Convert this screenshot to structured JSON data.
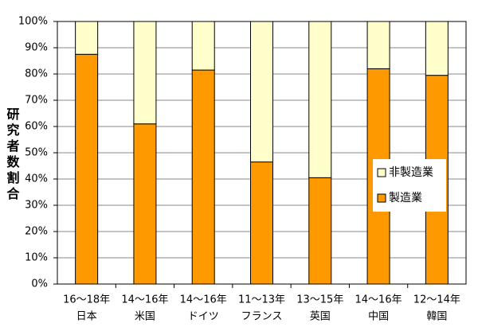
{
  "chart_data": {
    "type": "stacked_bar",
    "y_label": "研究者数割合",
    "categories": [
      [
        "16～18年",
        "日本"
      ],
      [
        "14～16年",
        "米国"
      ],
      [
        "14～16年",
        "ドイツ"
      ],
      [
        "11～13年",
        "フランス"
      ],
      [
        "13～15年",
        "英国"
      ],
      [
        "14～16年",
        "中国"
      ],
      [
        "12～14年",
        "韓国"
      ]
    ],
    "series": [
      {
        "name": "製造業",
        "color": "#ff9900",
        "values": [
          87.5,
          61,
          81.5,
          46.5,
          40.5,
          82,
          79.5
        ]
      },
      {
        "name": "非製造業",
        "color": "#ffffcc",
        "values": [
          12.5,
          39,
          18.5,
          53.5,
          59.5,
          18,
          20.5
        ]
      }
    ],
    "ylim": [
      0,
      100
    ],
    "yticks": [
      {
        "value": 0,
        "label": "0%"
      },
      {
        "value": 10,
        "label": "10%"
      },
      {
        "value": 20,
        "label": "20%"
      },
      {
        "value": 30,
        "label": "30%"
      },
      {
        "value": 40,
        "label": "40%"
      },
      {
        "value": 50,
        "label": "50%"
      },
      {
        "value": 60,
        "label": "60%"
      },
      {
        "value": 70,
        "label": "70%"
      },
      {
        "value": 80,
        "label": "80%"
      },
      {
        "value": 90,
        "label": "90%"
      },
      {
        "value": 100,
        "label": "100%"
      }
    ],
    "grid": true
  }
}
